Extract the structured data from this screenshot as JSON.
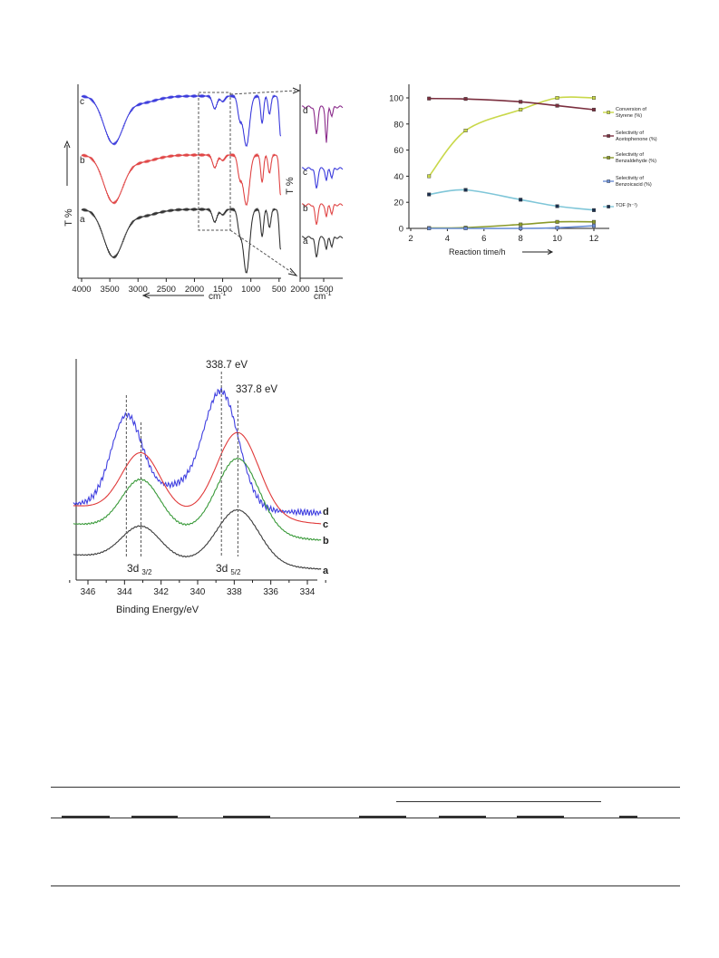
{
  "chart_data": [
    {
      "type": "line",
      "title": "",
      "xlabel": "cm-1",
      "ylabel": "T %",
      "xlim": [
        4000,
        400
      ],
      "x_ticks": [
        "4000",
        "3500",
        "3000",
        "2500",
        "2000",
        "1500",
        "1000",
        "500"
      ],
      "series": [
        {
          "name": "c",
          "color": "#3b3bdc"
        },
        {
          "name": "b",
          "color": "#e04545"
        },
        {
          "name": "a",
          "color": "#333333"
        }
      ],
      "inset": {
        "xlabel": "cm-1",
        "ylabel": "T %",
        "x_ticks": [
          "2000",
          "1500"
        ],
        "series": [
          {
            "name": "d",
            "color": "#8a2a8a"
          },
          {
            "name": "c",
            "color": "#3b3bdc"
          },
          {
            "name": "b",
            "color": "#e04545"
          },
          {
            "name": "a",
            "color": "#333333"
          }
        ]
      }
    },
    {
      "type": "line",
      "title": "",
      "xlabel": "Reaction time/h",
      "ylabel": "",
      "xlim": [
        2,
        13
      ],
      "ylim": [
        0,
        110
      ],
      "x_ticks": [
        2,
        4,
        6,
        8,
        10,
        12
      ],
      "y_ticks": [
        0,
        20,
        40,
        60,
        80,
        100
      ],
      "x": [
        3,
        5,
        8,
        10,
        12
      ],
      "legend_position": "right",
      "series": [
        {
          "name": "Conversion of Styrene (%)",
          "label_lines": [
            "Conversion of",
            "Styrene (%)"
          ],
          "color": "#c9d84a",
          "values": [
            40,
            75,
            91,
            100,
            100
          ]
        },
        {
          "name": "Selectivity of Acetophenone (%)",
          "label_lines": [
            "Selectivity of",
            "Acetophenone  (%)"
          ],
          "color": "#7b2f3f",
          "values": [
            99.5,
            99.2,
            97,
            94,
            91
          ]
        },
        {
          "name": "Selectivity of Benzaldehyde (%)",
          "label_lines": [
            "Selectivity of",
            "Benzaldehyde  (%)"
          ],
          "color": "#8a9a2a",
          "values": [
            0.3,
            0.6,
            3,
            5,
            5
          ]
        },
        {
          "name": "Selectivity of Benzoicacid (%)",
          "label_lines": [
            "Selectivity of",
            "Benzoicacid  (%)"
          ],
          "color": "#6b8fd6",
          "values": [
            0,
            0,
            0,
            0.5,
            2
          ]
        },
        {
          "name": "TOF (h-1)",
          "label_lines": [
            "TOF (h⁻¹)"
          ],
          "color": "#7fc6d8",
          "values": [
            26,
            29.5,
            22,
            17,
            14
          ]
        }
      ]
    },
    {
      "type": "line",
      "title": "",
      "xlabel": "Binding Energy/eV",
      "ylabel": "",
      "xlim": [
        347,
        333
      ],
      "x_ticks": [
        346,
        344,
        342,
        340,
        338,
        336,
        334
      ],
      "annotations": [
        "338.7 eV",
        "337.8 eV",
        "3d 3/2",
        "3d 5/2"
      ],
      "series": [
        {
          "name": "d",
          "color": "#4040e0",
          "peaks": [
            343.9,
            338.7
          ]
        },
        {
          "name": "c",
          "color": "#e03a3a",
          "peaks": [
            343.1,
            337.8
          ]
        },
        {
          "name": "b",
          "color": "#3a9a3a",
          "peaks": [
            343.1,
            337.8
          ]
        },
        {
          "name": "a",
          "color": "#3a3a3a",
          "peaks": [
            343.1,
            337.8
          ]
        }
      ]
    }
  ],
  "text": {
    "ftir_ylabel": "T %",
    "ftir_xlabel": "cm",
    "ftir_xlabel_sup": "-1",
    "inset_ylabel": "T %",
    "inset_xlabel": "cm",
    "inset_xlabel_sup": "-1",
    "react_xlabel": "Reaction time/h",
    "xps_xlabel": "Binding Energy/eV",
    "xps_peak1": "338.7 eV",
    "xps_peak2": "337.8 eV",
    "xps_3d32_main": "3d",
    "xps_3d32_sub": "3/2",
    "xps_3d52_main": "3d",
    "xps_3d52_sub": "5/2"
  }
}
